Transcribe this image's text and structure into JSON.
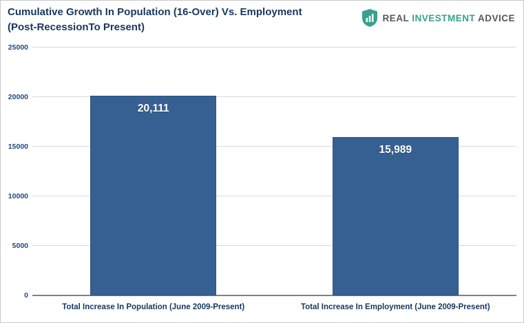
{
  "header": {
    "title_line1": "Cumulative Growth In Population (16-Over) Vs. Employment",
    "title_line2": "(Post-RecessionTo Present)",
    "logo": {
      "icon": "shield-icon",
      "word1": "REAL",
      "word2": "INVESTMENT",
      "word3": "ADVICE",
      "accent_color": "#36a28d",
      "text_color": "#55565a"
    }
  },
  "chart_data": {
    "type": "bar",
    "title": "Cumulative Growth In Population (16-Over) Vs. Employment (Post-RecessionTo Present)",
    "categories": [
      "Total Increase In Population (June 2009-Present)",
      "Total Increase In Employment (June 2009-Present)"
    ],
    "values": [
      20111,
      15989
    ],
    "value_labels": [
      "20,111",
      "15,989"
    ],
    "xlabel": "",
    "ylabel": "",
    "ylim": [
      0,
      25000
    ],
    "yticks": [
      0,
      5000,
      10000,
      15000,
      20000,
      25000
    ],
    "ytick_labels": [
      "0",
      "5000",
      "10000",
      "15000",
      "20000",
      "25000"
    ],
    "grid": true,
    "legend": "none",
    "bar_color": "#376092"
  }
}
